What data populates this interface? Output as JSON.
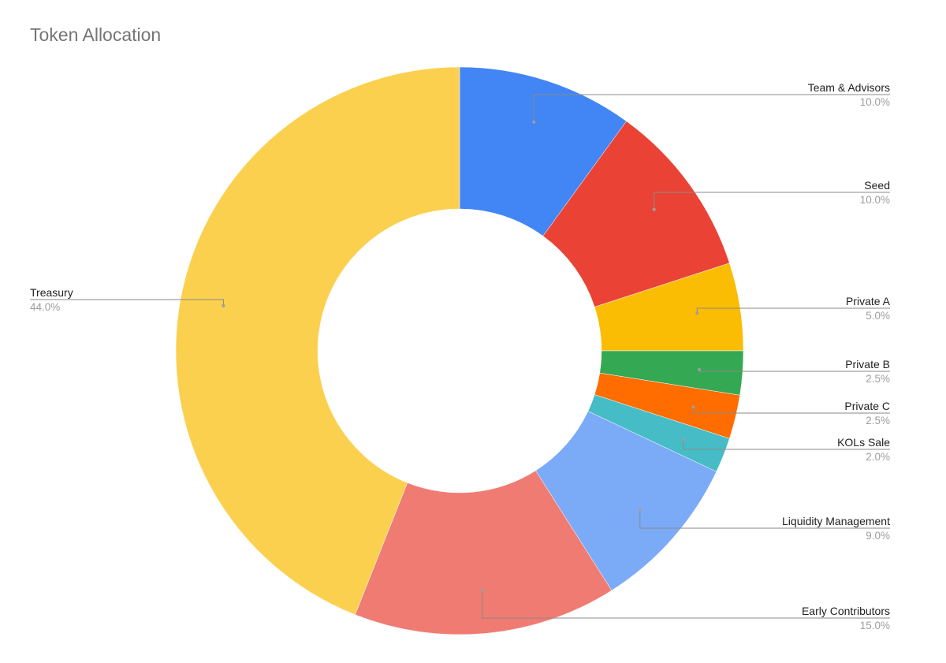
{
  "chart_data": {
    "type": "pie",
    "donut": true,
    "title": "Token Allocation",
    "legend": "labels beside slices",
    "slices": [
      {
        "label": "Team & Advisors",
        "percent": 10.0,
        "percent_label": "10.0%",
        "color": "#4285F4",
        "side": "right"
      },
      {
        "label": "Seed",
        "percent": 10.0,
        "percent_label": "10.0%",
        "color": "#EA4335",
        "side": "right"
      },
      {
        "label": "Private A",
        "percent": 5.0,
        "percent_label": "5.0%",
        "color": "#FBBC04",
        "side": "right"
      },
      {
        "label": "Private B",
        "percent": 2.5,
        "percent_label": "2.5%",
        "color": "#34A853",
        "side": "right"
      },
      {
        "label": "Private C",
        "percent": 2.5,
        "percent_label": "2.5%",
        "color": "#FF6D01",
        "side": "right"
      },
      {
        "label": "KOLs Sale",
        "percent": 2.0,
        "percent_label": "2.0%",
        "color": "#46BDC6",
        "side": "right"
      },
      {
        "label": "Liquidity Management",
        "percent": 9.0,
        "percent_label": "9.0%",
        "color": "#7BAAF7",
        "side": "right"
      },
      {
        "label": "Early Contributors",
        "percent": 15.0,
        "percent_label": "15.0%",
        "color": "#F07B72",
        "side": "right"
      },
      {
        "label": "Treasury",
        "percent": 44.0,
        "percent_label": "44.0%",
        "color": "#FCD04F",
        "side": "left"
      }
    ]
  }
}
